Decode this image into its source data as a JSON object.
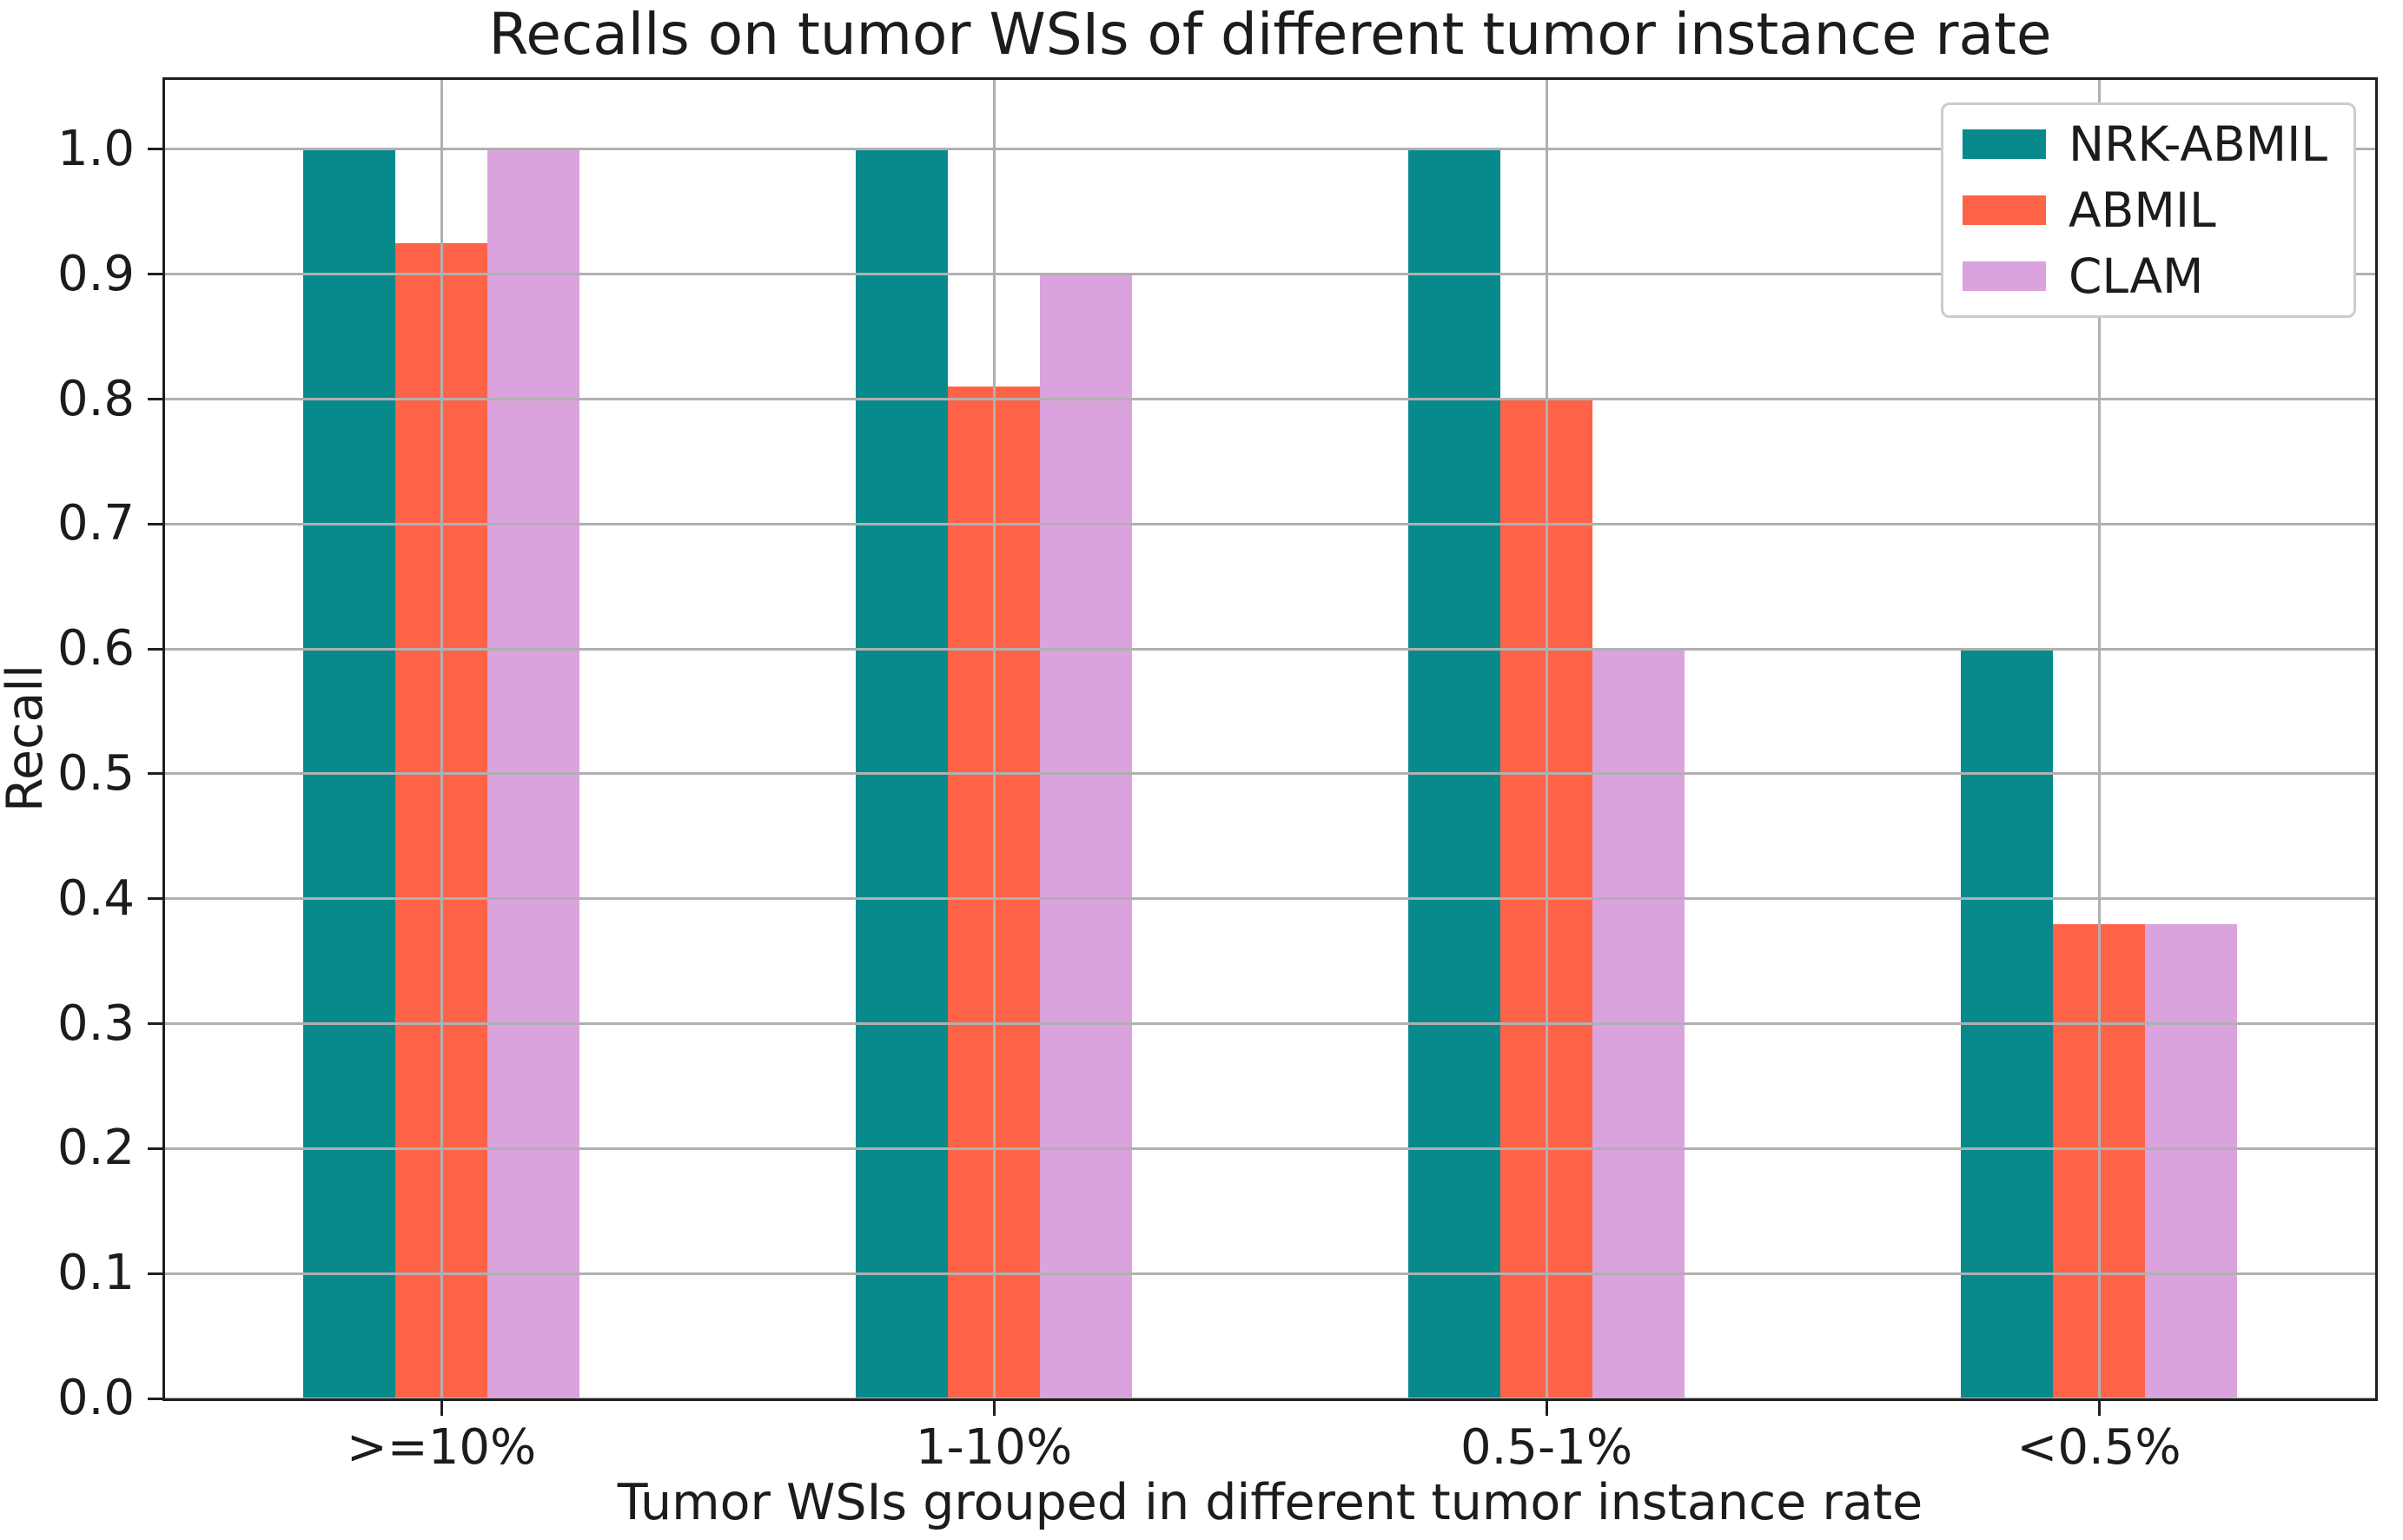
{
  "figure": {
    "background_color": "#ffffff",
    "spine_color": "#1f1f1f"
  },
  "chart_data": {
    "type": "bar",
    "title": "Recalls on tumor WSIs of different tumor instance rate",
    "xlabel": "Tumor WSIs grouped in different tumor instance rate",
    "ylabel": "Recall",
    "categories": [
      ">=10%",
      "1-10%",
      "0.5-1%",
      "<0.5%"
    ],
    "series": [
      {
        "name": "NRK-ABMIL",
        "color": "#088a8c",
        "values": [
          1.0,
          1.0,
          1.0,
          0.6
        ]
      },
      {
        "name": "ABMIL",
        "color": "#ff6347",
        "values": [
          0.925,
          0.81,
          0.8,
          0.38
        ]
      },
      {
        "name": "CLAM",
        "color": "#dba3de",
        "values": [
          1.0,
          0.9,
          0.6,
          0.38
        ]
      }
    ],
    "yticks": {
      "values": [
        0.0,
        0.1,
        0.2,
        0.3,
        0.4,
        0.5,
        0.6,
        0.7,
        0.8,
        0.9,
        1.0
      ],
      "labels": [
        "0.0",
        "0.1",
        "0.2",
        "0.3",
        "0.4",
        "0.5",
        "0.6",
        "0.7",
        "0.8",
        "0.9",
        "1.0"
      ]
    },
    "ylim": [
      0,
      1.0556
    ],
    "grid": true,
    "grid_color": "#b0b0b0",
    "axis_grid": "both",
    "legend_position": "upper right",
    "bar_width_fraction": 0.1667
  }
}
